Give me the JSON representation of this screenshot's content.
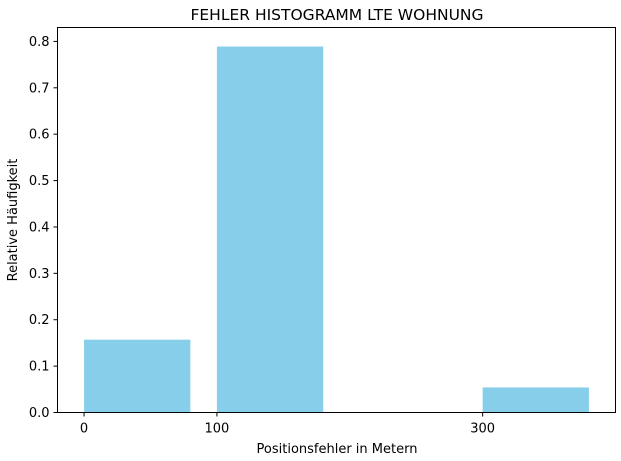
{
  "chart_data": {
    "type": "bar",
    "title": "FEHLER HISTOGRAMM LTE WOHNUNG",
    "xlabel": "Positionsfehler in Metern",
    "ylabel": "Relative Häufigkeit",
    "bar_color": "#87ceeb",
    "bins": [
      {
        "start": 0,
        "end": 80,
        "value": 0.157
      },
      {
        "start": 100,
        "end": 180,
        "value": 0.789
      },
      {
        "start": 300,
        "end": 380,
        "value": 0.054
      }
    ],
    "xlim": [
      -20,
      400
    ],
    "ylim": [
      0,
      0.83
    ],
    "xticks": [
      0,
      100,
      300
    ],
    "yticks": [
      0.0,
      0.1,
      0.2,
      0.3,
      0.4,
      0.5,
      0.6,
      0.7,
      0.8
    ],
    "ytick_labels": [
      "0.0",
      "0.1",
      "0.2",
      "0.3",
      "0.4",
      "0.5",
      "0.6",
      "0.7",
      "0.8"
    ],
    "grid": false,
    "legend": false
  }
}
